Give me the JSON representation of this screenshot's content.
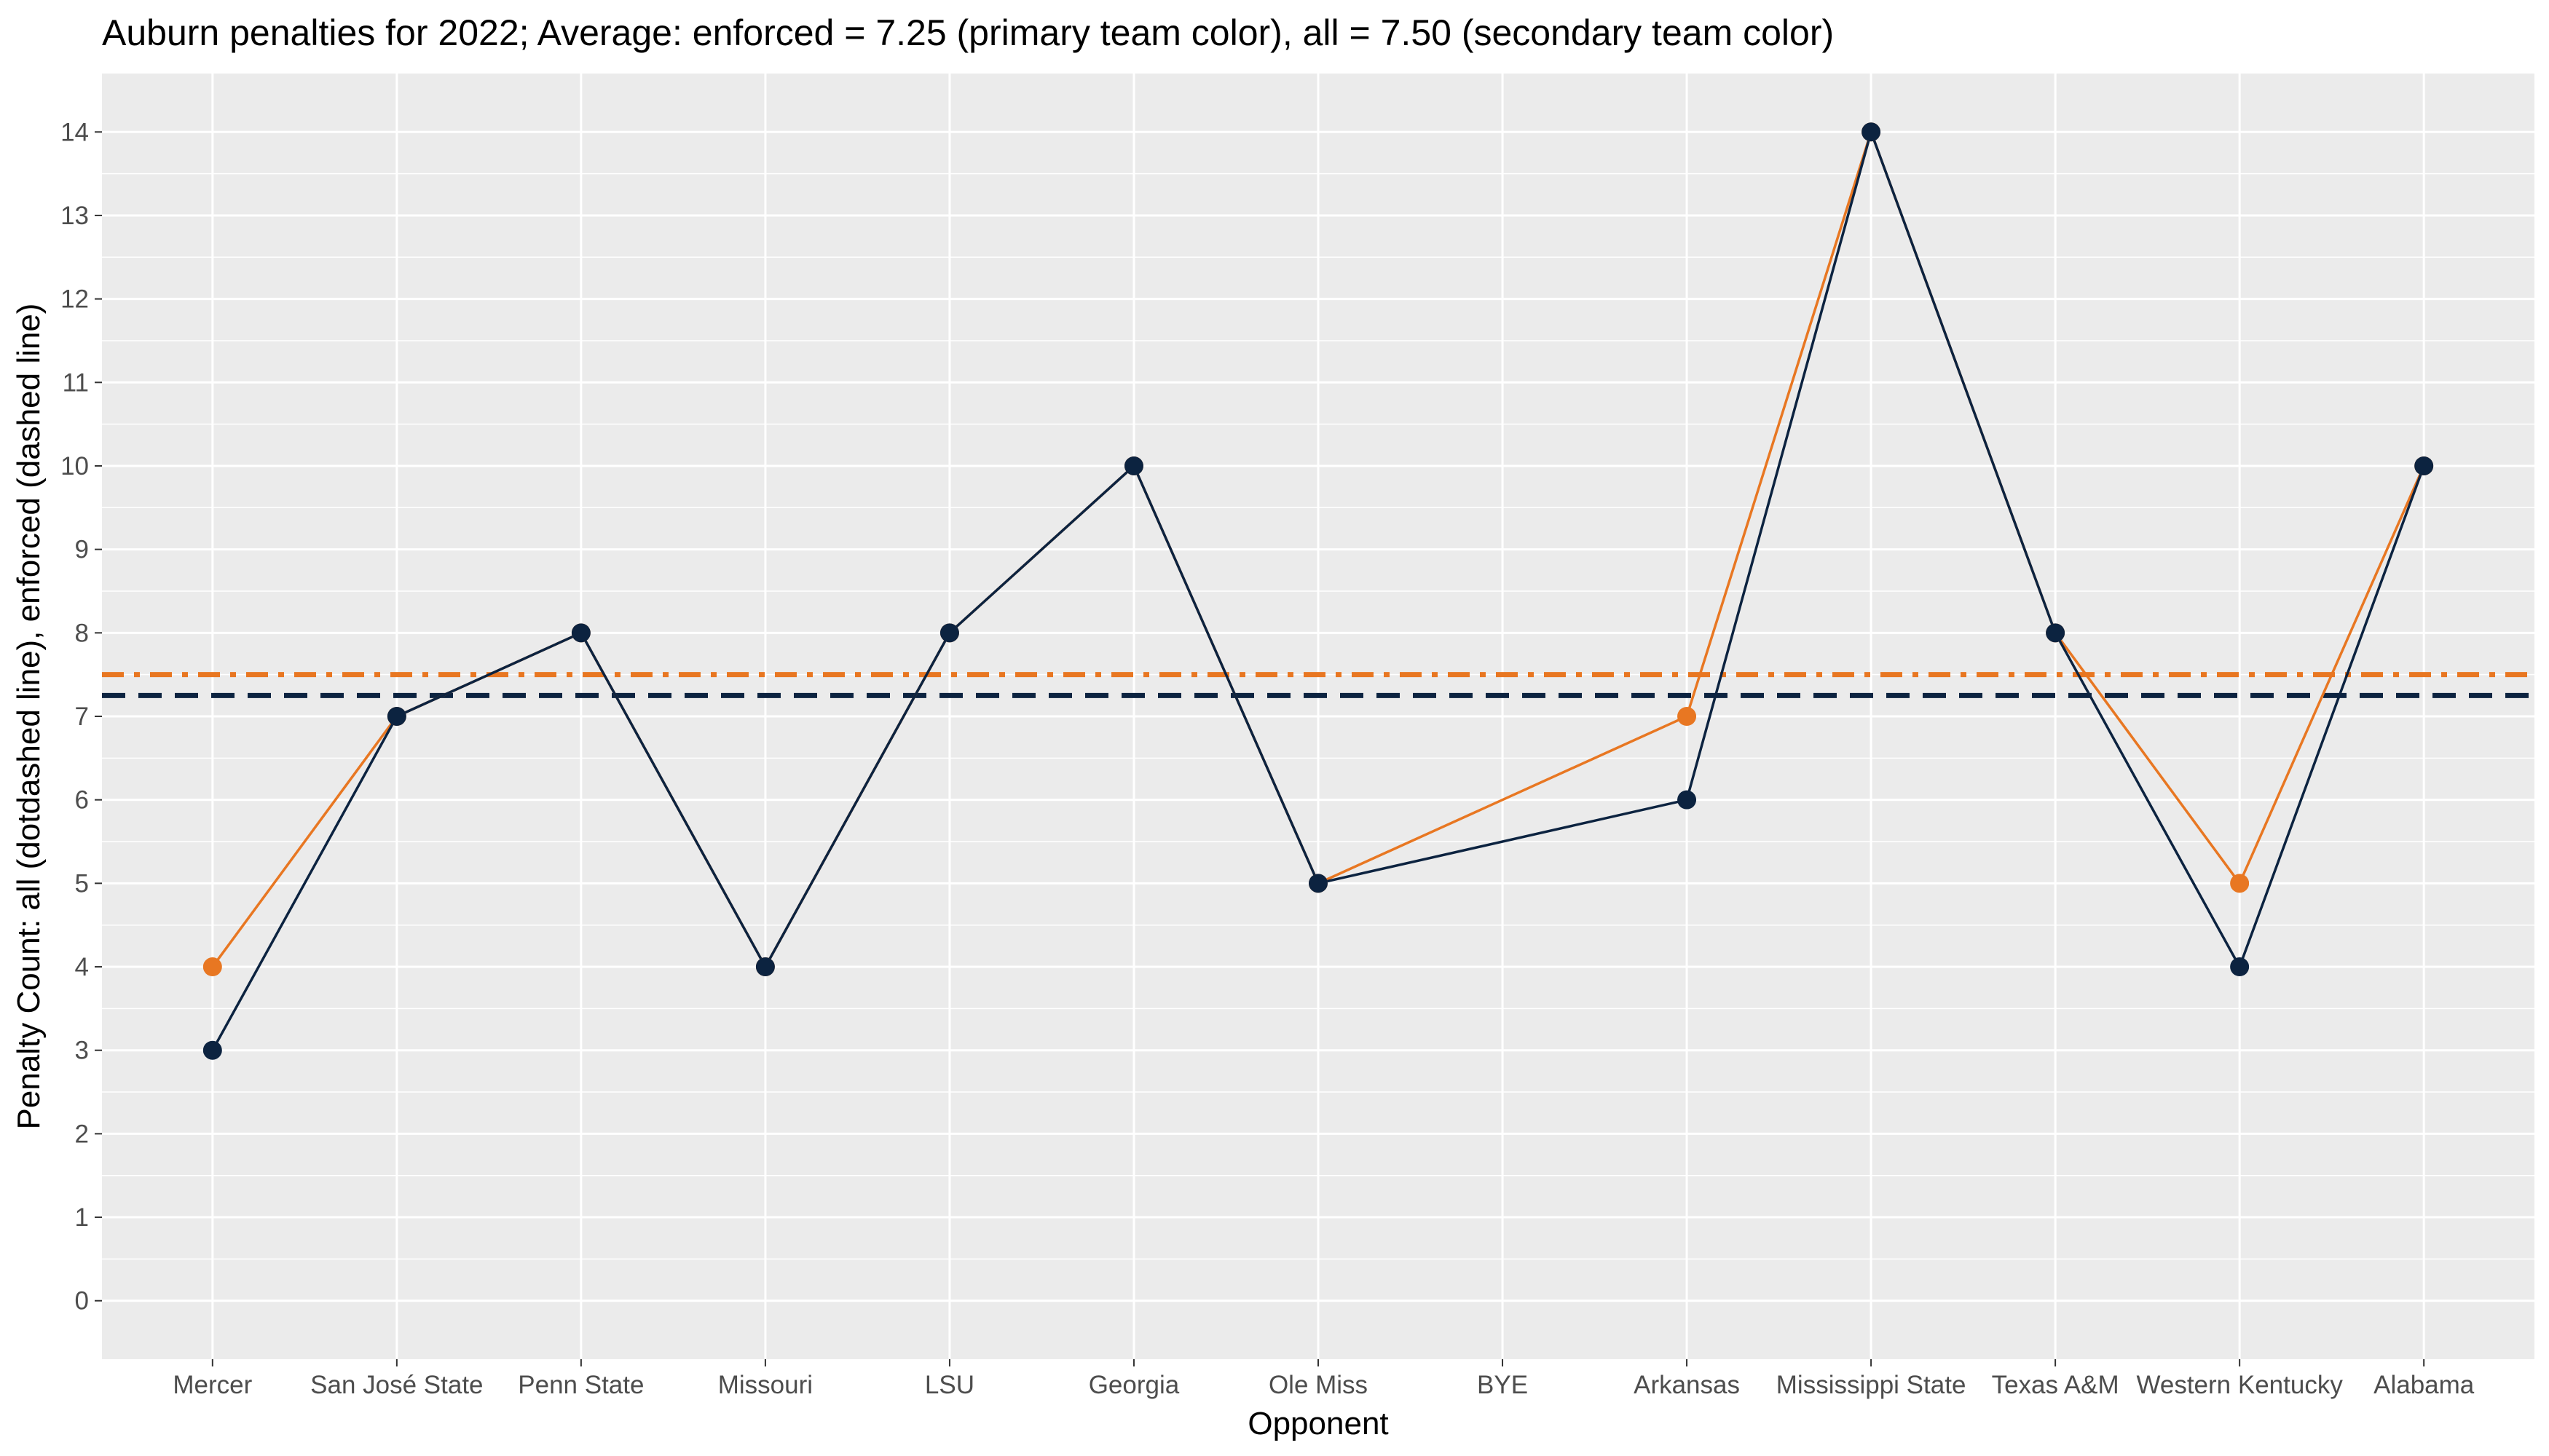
{
  "chart_data": {
    "type": "line",
    "title": "Auburn penalties for 2022; Average: enforced = 7.25 (primary team color), all = 7.50 (secondary team color)",
    "xlabel": "Opponent",
    "ylabel": "Penalty Count: all (dotdashed line), enforced (dashed line)",
    "categories": [
      "Mercer",
      "San José State",
      "Penn State",
      "Missouri",
      "LSU",
      "Georgia",
      "Ole Miss",
      "BYE",
      "Arkansas",
      "Mississippi State",
      "Texas A&M",
      "Western Kentucky",
      "Alabama"
    ],
    "ylim": [
      -0.7,
      14.7
    ],
    "yticks": [
      0,
      1,
      2,
      3,
      4,
      5,
      6,
      7,
      8,
      9,
      10,
      11,
      12,
      13,
      14
    ],
    "grid": true,
    "series": [
      {
        "key": "all",
        "color": "#E87722",
        "values": [
          4,
          7,
          8,
          4,
          8,
          10,
          5,
          null,
          7,
          14,
          8,
          5,
          10
        ],
        "average": 7.5,
        "average_style": "dotdashed"
      },
      {
        "key": "enforced",
        "color": "#0C2340",
        "values": [
          3,
          7,
          8,
          4,
          8,
          10,
          5,
          null,
          6,
          14,
          8,
          4,
          10
        ],
        "average": 7.25,
        "average_style": "dashed"
      }
    ],
    "colors": {
      "panel_background": "#EBEBEB",
      "gridline": "#FFFFFF",
      "tick_text": "#4D4D4D",
      "tick_mark": "#333333"
    }
  }
}
